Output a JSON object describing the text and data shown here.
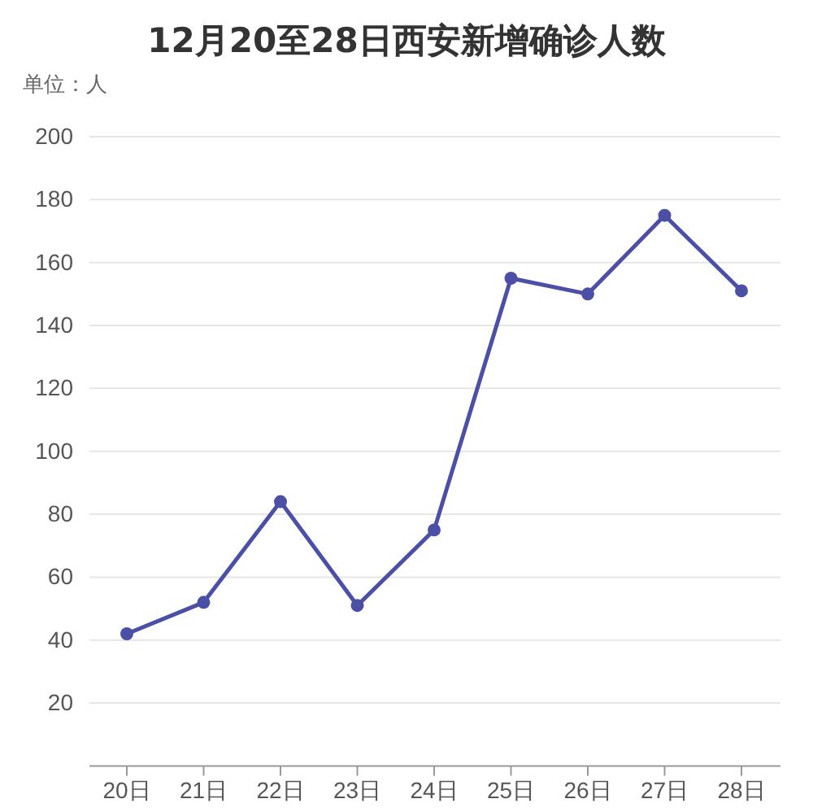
{
  "chart_data": {
    "type": "line",
    "title": "12月20至28日西安新增确诊人数",
    "annotations": [
      "单位：人"
    ],
    "categories": [
      "20日",
      "21日",
      "22日",
      "23日",
      "24日",
      "25日",
      "26日",
      "27日",
      "28日"
    ],
    "series": [
      {
        "color": "#4b4fa6",
        "values": [
          42,
          52,
          84,
          51,
          75,
          155,
          150,
          175,
          151
        ]
      }
    ],
    "ylim": [
      0,
      200
    ],
    "yticks": [
      20,
      40,
      60,
      80,
      100,
      120,
      140,
      160,
      180,
      200
    ],
    "grid": "y",
    "marker": "circle",
    "line_style": "solid"
  }
}
